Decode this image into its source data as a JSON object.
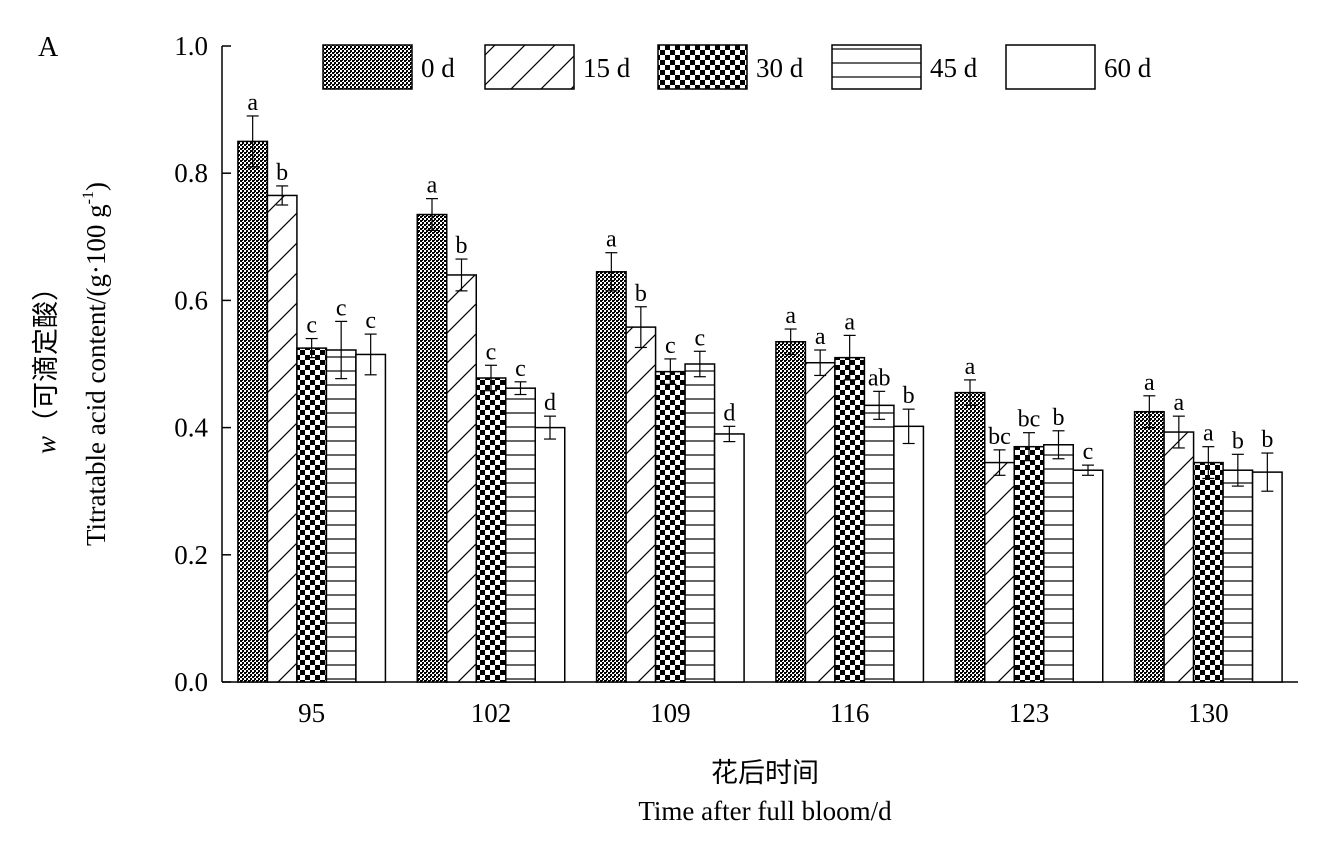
{
  "panel_label": "A",
  "chart_data": {
    "type": "bar",
    "ylabel_line1_prefix": "w",
    "ylabel_line1_rest": "（可滴定酸）",
    "ylabel_line2": "Titratable acid content/(g·100 g",
    "ylabel_line2_sup": "-1",
    "ylabel_line2_end": ")",
    "xlabel_line1": "花后时间",
    "xlabel_line2": "Time after full bloom/d",
    "ylim": [
      0,
      1.0
    ],
    "yticks": [
      "0.0",
      "0.2",
      "0.4",
      "0.6",
      "0.8",
      "1.0"
    ],
    "categories": [
      "95",
      "102",
      "109",
      "116",
      "123",
      "130"
    ],
    "legend_position": "top",
    "series": [
      {
        "name": "0 d",
        "pattern": "dots",
        "values": [
          0.85,
          0.735,
          0.645,
          0.535,
          0.455,
          0.425
        ],
        "errors": [
          0.04,
          0.025,
          0.03,
          0.02,
          0.02,
          0.025
        ],
        "letters": [
          "a",
          "a",
          "a",
          "a",
          "a",
          "a"
        ]
      },
      {
        "name": "15 d",
        "pattern": "diagonal",
        "values": [
          0.765,
          0.64,
          0.558,
          0.502,
          0.345,
          0.393
        ],
        "errors": [
          0.015,
          0.025,
          0.032,
          0.02,
          0.02,
          0.025
        ],
        "letters": [
          "b",
          "b",
          "b",
          "a",
          "bc",
          "a"
        ]
      },
      {
        "name": "30 d",
        "pattern": "checker",
        "values": [
          0.525,
          0.478,
          0.488,
          0.51,
          0.37,
          0.345
        ],
        "errors": [
          0.015,
          0.02,
          0.02,
          0.035,
          0.022,
          0.025
        ],
        "letters": [
          "c",
          "c",
          "c",
          "a",
          "bc",
          "a"
        ]
      },
      {
        "name": "45 d",
        "pattern": "horizontal",
        "values": [
          0.522,
          0.462,
          0.5,
          0.435,
          0.373,
          0.333
        ],
        "errors": [
          0.045,
          0.01,
          0.02,
          0.022,
          0.022,
          0.025
        ],
        "letters": [
          "c",
          "c",
          "c",
          "ab",
          "b",
          "b"
        ]
      },
      {
        "name": "60 d",
        "pattern": "empty",
        "values": [
          0.515,
          0.4,
          0.39,
          0.402,
          0.333,
          0.33
        ],
        "errors": [
          0.032,
          0.018,
          0.012,
          0.027,
          0.008,
          0.03
        ],
        "letters": [
          "c",
          "d",
          "d",
          "b",
          "c",
          "b"
        ]
      }
    ]
  }
}
